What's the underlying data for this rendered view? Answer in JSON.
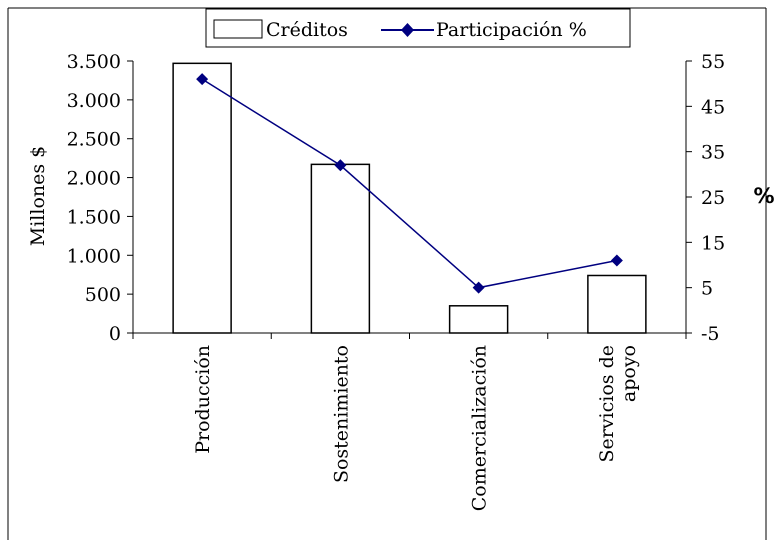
{
  "chart_data": {
    "type": "bar",
    "categories": [
      "Producción",
      "Sostenimiento",
      "Comercialización",
      "Servicios de apoyo"
    ],
    "category_lines": [
      [
        "Producción"
      ],
      [
        "Sostenimiento"
      ],
      [
        "Comercialización"
      ],
      [
        "Servicios de",
        "apoyo"
      ]
    ],
    "series": [
      {
        "name": "Créditos",
        "kind": "bar",
        "axis": "left",
        "values": [
          3470,
          2170,
          350,
          740
        ]
      },
      {
        "name": "Participación %",
        "kind": "line",
        "axis": "right",
        "values": [
          51,
          32,
          5,
          11
        ]
      }
    ],
    "ylabel": "Millones $",
    "y2label": "%",
    "ylim": [
      0,
      3500
    ],
    "y2lim": [
      -5,
      55
    ],
    "yticks": [
      0,
      500,
      1000,
      1500,
      2000,
      2500,
      3000,
      3500
    ],
    "ytick_labels": [
      "0",
      "500",
      "1.000",
      "1.500",
      "2.000",
      "2.500",
      "3.000",
      "3.500"
    ],
    "y2ticks": [
      -5,
      5,
      15,
      25,
      35,
      45,
      55
    ],
    "y2tick_labels": [
      "-5",
      "5",
      "15",
      "25",
      "35",
      "45",
      "55"
    ],
    "legend_position": "top",
    "grid": false,
    "colors": {
      "bar_fill": "#ffffff",
      "bar_stroke": "#000000",
      "line": "#000080",
      "marker": "#000080",
      "axis": "#000000"
    }
  }
}
